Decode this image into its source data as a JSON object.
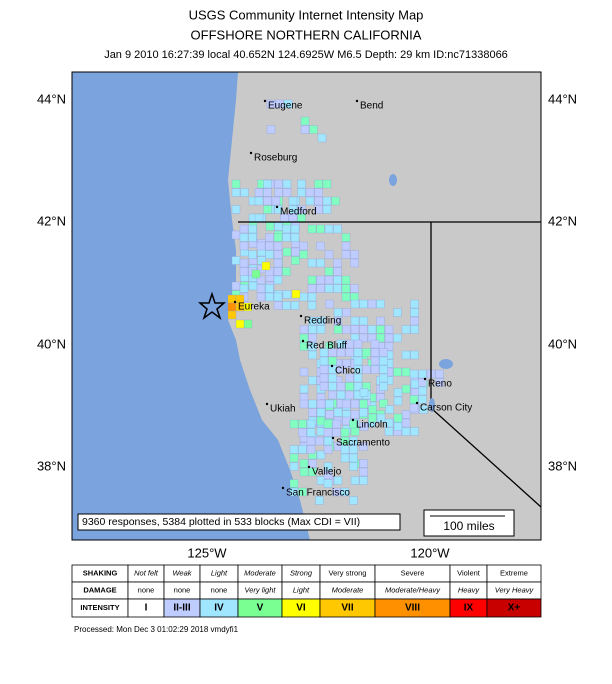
{
  "header": {
    "title": "USGS Community Internet Intensity Map",
    "subtitle": "OFFSHORE NORTHERN CALIFORNIA",
    "info": "Jan 9 2010 16:27:39 local 40.652N 124.6925W M6.5 Depth: 29 km ID:nc71338066"
  },
  "map": {
    "lat_labels": [
      "44°N",
      "42°N",
      "40°N",
      "38°N"
    ],
    "lon_labels": [
      "125°W",
      "120°W"
    ],
    "cities": [
      "Eugene",
      "Bend",
      "Roseburg",
      "Medford",
      "Eureka",
      "Redding",
      "Red Bluff",
      "Chico",
      "Ukiah",
      "Reno",
      "Carson City",
      "Lincoln",
      "Sacramento",
      "Vallejo",
      "San Francisco"
    ],
    "summary": "9360 responses, 5384 plotted in 533 blocks (Max CDI = VII)",
    "scale": "100 miles"
  },
  "legend": {
    "rows": [
      {
        "label": "SHAKING",
        "cells": [
          "Not felt",
          "Weak",
          "Light",
          "Moderate",
          "Strong",
          "Very strong",
          "Severe",
          "Violent",
          "Extreme"
        ]
      },
      {
        "label": "DAMAGE",
        "cells": [
          "none",
          "none",
          "none",
          "Very light",
          "Light",
          "Moderate",
          "Moderate/Heavy",
          "Heavy",
          "Very Heavy"
        ]
      },
      {
        "label": "INTENSITY",
        "cells": [
          "I",
          "II-III",
          "IV",
          "V",
          "VI",
          "VII",
          "VIII",
          "IX",
          "X+"
        ]
      }
    ]
  },
  "footer": "Processed: Mon Dec  3 01:02:29 2018 vmdyfi1"
}
